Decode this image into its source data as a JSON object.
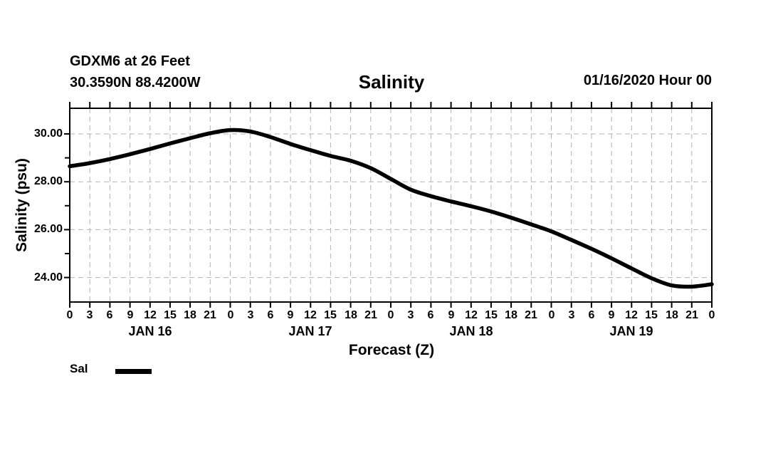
{
  "header": {
    "station": "GDXM6 at 26 Feet",
    "coordinates": "30.3590N 88.4200W",
    "title": "Salinity",
    "datetime": "01/16/2020 Hour 00"
  },
  "chart_data": {
    "type": "line",
    "title": "Salinity",
    "xlabel": "Forecast (Z)",
    "ylabel": "Salinity (psu)",
    "x_unit": "hours (Z)",
    "x_start_hour": 0,
    "x_end_hour": 96,
    "x_step_hours": 3,
    "x_hour_tick_labels": [
      "0",
      "3",
      "6",
      "9",
      "12",
      "15",
      "18",
      "21"
    ],
    "x_final_tick_label": "0",
    "x_day_labels": [
      "JAN 16",
      "JAN 17",
      "JAN 18",
      "JAN 19"
    ],
    "y_tick_labels": [
      "30.00",
      "28.00",
      "26.00",
      "24.00"
    ],
    "y_tick_values": [
      30,
      28,
      26,
      24
    ],
    "y_minor_tick_values": [
      29,
      27,
      25
    ],
    "ylim": [
      22.98,
      31.07
    ],
    "grid": true,
    "grid_style": "dashed",
    "grid_color": "#b2b2b2",
    "line_color": "#000000",
    "legend": {
      "label": "Sal",
      "position": "bottom-left"
    },
    "series": [
      {
        "name": "Sal",
        "hours": [
          0,
          3,
          6,
          9,
          12,
          15,
          18,
          21,
          24,
          27,
          30,
          33,
          36,
          39,
          42,
          45,
          48,
          51,
          54,
          57,
          60,
          63,
          66,
          69,
          72,
          75,
          78,
          81,
          84,
          87,
          90,
          93,
          96
        ],
        "values": [
          28.65,
          28.78,
          28.95,
          29.15,
          29.37,
          29.6,
          29.82,
          30.03,
          30.16,
          30.1,
          29.87,
          29.58,
          29.32,
          29.08,
          28.88,
          28.57,
          28.12,
          27.67,
          27.4,
          27.18,
          26.98,
          26.76,
          26.5,
          26.22,
          25.93,
          25.57,
          25.2,
          24.8,
          24.38,
          23.97,
          23.67,
          23.62,
          23.72
        ]
      }
    ]
  }
}
